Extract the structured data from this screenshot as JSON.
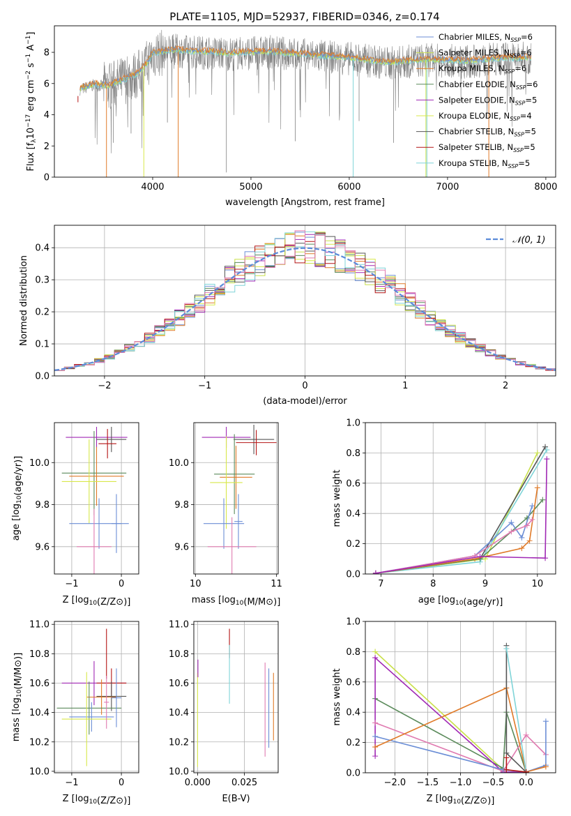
{
  "figure": {
    "title": "PLATE=1105, MJD=52937, FIBERID=0346, z=0.174"
  },
  "model_colors": {
    "Chabrier MILES": "#6b8ed6",
    "Salpeter MILES": "#c9e04a",
    "Kroupa MILES": "#e07a28",
    "Chabrier ELODIE": "#5a8a5a",
    "Salpeter ELODIE": "#a028b4",
    "Kroupa ELODIE": "#d8e84a",
    "Chabrier STELIB": "#555555",
    "Salpeter STELIB": "#b41414",
    "Kroupa STELIB": "#7fd4d8",
    "Pink": "#e07ab0",
    "Observed spectrum": "#808080",
    "Normal curve": "#5b8bd9"
  },
  "chart_data": [
    {
      "type": "line",
      "panel": "spectrum",
      "xlabel": "wavelength [Angstrom, rest frame]",
      "ylabel": "Flux [f_λ 10^-17 erg cm^-2 s^-1 A^-1]",
      "xlim": [
        3000,
        8100
      ],
      "ylim": [
        0,
        9.7
      ],
      "xticks": [
        4000,
        5000,
        6000,
        7000,
        8000
      ],
      "yticks": [
        0,
        2,
        4,
        6,
        8
      ],
      "grid": false,
      "legend_position": "right",
      "legend": [
        {
          "name": "Chabrier MILES, N_SSP=6",
          "label": "Chabrier MILES, N",
          "sub": "SSP",
          "tail": "=6"
        },
        {
          "name": "Salpeter MILES, N_SSP=6",
          "label": "Salpeter MILES, N",
          "sub": "SSP",
          "tail": "=6"
        },
        {
          "name": "Kroupa MILES, N_SSP=6",
          "label": "Kroupa MILES, N",
          "sub": "SSP",
          "tail": "=6"
        },
        {
          "name": "Chabrier ELODIE, N_SSP=6",
          "label": "Chabrier ELODIE, N",
          "sub": "SSP",
          "tail": "=6"
        },
        {
          "name": "Salpeter ELODIE, N_SSP=5",
          "label": "Salpeter ELODIE, N",
          "sub": "SSP",
          "tail": "=5"
        },
        {
          "name": "Kroupa ELODIE, N_SSP=4",
          "label": "Kroupa ELODIE, N",
          "sub": "SSP",
          "tail": "=4"
        },
        {
          "name": "Chabrier STELIB, N_SSP=5",
          "label": "Chabrier STELIB, N",
          "sub": "SSP",
          "tail": "=5"
        },
        {
          "name": "Salpeter STELIB, N_SSP=5",
          "label": "Salpeter STELIB, N",
          "sub": "SSP",
          "tail": "=5"
        },
        {
          "name": "Kroupa STELIB, N_SSP=5",
          "label": "Kroupa STELIB, N",
          "sub": "SSP",
          "tail": "=5"
        }
      ],
      "continuum": {
        "x": [
          3250,
          3400,
          3550,
          3700,
          3850,
          3950,
          4000,
          4200,
          4500,
          4800,
          5200,
          5600,
          6000,
          6400,
          6800,
          7200,
          7600,
          7850
        ],
        "y": [
          5.6,
          5.9,
          5.8,
          6.2,
          6.6,
          7.3,
          7.9,
          8.1,
          8.0,
          7.9,
          8.0,
          7.8,
          7.6,
          7.3,
          7.5,
          7.4,
          7.6,
          7.6
        ]
      },
      "model_spikes": [
        {
          "x": 3530,
          "color": "Kroupa MILES"
        },
        {
          "x": 3910,
          "color": "Kroupa ELODIE"
        },
        {
          "x": 4260,
          "color": "Kroupa MILES"
        },
        {
          "x": 6040,
          "color": "Kroupa STELIB"
        },
        {
          "x": 6780,
          "color": "Salpeter MILES"
        },
        {
          "x": 6790,
          "color": "Kroupa STELIB"
        },
        {
          "x": 7420,
          "color": "Kroupa MILES"
        }
      ],
      "data_dips": [
        {
          "x": 3600,
          "y": 2.2
        },
        {
          "x": 3780,
          "y": 2.8
        },
        {
          "x": 4150,
          "y": 3.5
        },
        {
          "x": 4750,
          "y": 0.3
        },
        {
          "x": 5450,
          "y": 2.3
        },
        {
          "x": 6450,
          "y": 2.2
        },
        {
          "x": 6100,
          "y": 3.6
        }
      ]
    },
    {
      "type": "bar",
      "panel": "residual-histogram",
      "xlabel": "(data-model)/error",
      "ylabel": "Normed distribution",
      "xlim": [
        -2.5,
        2.5
      ],
      "ylim": [
        0,
        0.47
      ],
      "xticks": [
        -2,
        -1,
        0,
        1,
        2
      ],
      "yticks": [
        0.0,
        0.1,
        0.2,
        0.3,
        0.4
      ],
      "grid": true,
      "legend_position": "top-right",
      "curve_legend_label": "𝒩(0, 1)",
      "bin_edges_range": [
        -2.5,
        2.5
      ],
      "n_bins": 50,
      "series_colors": [
        "Chabrier MILES",
        "Salpeter MILES",
        "Kroupa MILES",
        "Chabrier ELODIE",
        "Salpeter ELODIE",
        "Kroupa ELODIE",
        "Chabrier STELIB",
        "Salpeter STELIB",
        "Kroupa STELIB",
        "Pink"
      ],
      "curve": "standard normal density"
    },
    {
      "type": "scatter",
      "panel": "age-vs-Z",
      "xlabel": "Z [log10(Z/Z⊙)]",
      "ylabel": "age  [log10(age/yr)]",
      "xlim": [
        -1.35,
        0.35
      ],
      "ylim": [
        9.47,
        10.19
      ],
      "xticks": [
        -1,
        0
      ],
      "yticks": [
        9.6,
        9.8,
        10.0
      ],
      "grid": true,
      "points": [
        {
          "x": -0.5,
          "y": 10.12,
          "xerr": 0.62,
          "yerr": 0.05,
          "color": "Salpeter ELODIE"
        },
        {
          "x": -0.2,
          "y": 10.11,
          "xerr": 0.3,
          "yerr": 0.06,
          "color": "Chabrier STELIB"
        },
        {
          "x": -0.28,
          "y": 10.09,
          "xerr": 0.18,
          "yerr": 0.07,
          "color": "Salpeter STELIB"
        },
        {
          "x": -0.55,
          "y": 9.95,
          "xerr": 0.65,
          "yerr": 0.2,
          "color": "Chabrier ELODIE"
        },
        {
          "x": -0.5,
          "y": 9.935,
          "xerr": 0.55,
          "yerr": 0.14,
          "color": "Kroupa MILES"
        },
        {
          "x": -0.65,
          "y": 9.91,
          "xerr": 0.55,
          "yerr": 0.2,
          "color": "Kroupa ELODIE"
        },
        {
          "x": -0.45,
          "y": 9.71,
          "xerr": 0.6,
          "yerr": 0.12,
          "color": "Chabrier MILES"
        },
        {
          "x": -0.1,
          "y": 9.71,
          "xerr": 0.1,
          "yerr": 0.14,
          "color": "Chabrier MILES"
        },
        {
          "x": -0.55,
          "y": 9.6,
          "xerr": 0.35,
          "yerr": 0.18,
          "color": "Pink"
        }
      ]
    },
    {
      "type": "scatter",
      "panel": "age-vs-mass",
      "xlabel": "mass [log10(M/M⊙)]",
      "ylabel": "",
      "xlim": [
        9.98,
        11.02
      ],
      "ylim": [
        9.47,
        10.19
      ],
      "xticks": [
        10,
        11
      ],
      "yticks": [
        9.6,
        9.8,
        10.0
      ],
      "grid": true,
      "points": [
        {
          "x": 10.38,
          "y": 10.12,
          "xerr": 0.3,
          "yerr": 0.05,
          "color": "Salpeter ELODIE"
        },
        {
          "x": 10.72,
          "y": 10.11,
          "xerr": 0.25,
          "yerr": 0.07,
          "color": "Chabrier STELIB"
        },
        {
          "x": 10.75,
          "y": 10.095,
          "xerr": 0.25,
          "yerr": 0.06,
          "color": "Salpeter STELIB"
        },
        {
          "x": 10.48,
          "y": 9.945,
          "xerr": 0.25,
          "yerr": 0.19,
          "color": "Chabrier ELODIE"
        },
        {
          "x": 10.5,
          "y": 9.93,
          "xerr": 0.2,
          "yerr": 0.15,
          "color": "Kroupa MILES"
        },
        {
          "x": 10.38,
          "y": 9.905,
          "xerr": 0.2,
          "yerr": 0.22,
          "color": "Kroupa ELODIE"
        },
        {
          "x": 10.35,
          "y": 9.71,
          "xerr": 0.25,
          "yerr": 0.12,
          "color": "Chabrier MILES"
        },
        {
          "x": 10.53,
          "y": 9.72,
          "xerr": 0.05,
          "yerr": 0.13,
          "color": "Chabrier MILES"
        },
        {
          "x": 10.45,
          "y": 9.6,
          "xerr": 0.3,
          "yerr": 0.14,
          "color": "Pink"
        }
      ]
    },
    {
      "type": "line",
      "panel": "massweight-vs-age",
      "xlabel": "age  [log10(age/yr)]",
      "ylabel": "mass weight",
      "xlim": [
        6.7,
        10.35
      ],
      "ylim": [
        0,
        1.0
      ],
      "xticks": [
        7,
        8,
        9,
        10
      ],
      "yticks": [
        0.0,
        0.2,
        0.4,
        0.6,
        0.8,
        1.0
      ],
      "grid": true,
      "series": [
        {
          "color": "Salpeter MILES",
          "x": [
            6.9,
            9.0,
            10.0
          ],
          "y": [
            0.005,
            0.1,
            0.8
          ]
        },
        {
          "color": "Chabrier STELIB",
          "x": [
            6.9,
            8.9,
            10.15
          ],
          "y": [
            0.005,
            0.1,
            0.84
          ]
        },
        {
          "color": "Kroupa STELIB",
          "x": [
            6.9,
            8.9,
            10.18
          ],
          "y": [
            0.005,
            0.08,
            0.82
          ]
        },
        {
          "color": "Chabrier ELODIE",
          "x": [
            6.9,
            8.9,
            9.8,
            10.1
          ],
          "y": [
            0.005,
            0.1,
            0.37,
            0.49
          ]
        },
        {
          "color": "Chabrier MILES",
          "x": [
            6.9,
            8.8,
            9.5,
            9.7,
            9.9
          ],
          "y": [
            0.005,
            0.12,
            0.34,
            0.24,
            0.45
          ]
        },
        {
          "color": "Kroupa MILES",
          "x": [
            6.9,
            8.8,
            9.7,
            9.85,
            10.0
          ],
          "y": [
            0.005,
            0.1,
            0.17,
            0.22,
            0.57
          ]
        },
        {
          "color": "Pink",
          "x": [
            6.9,
            8.8,
            9.5,
            9.8,
            9.9
          ],
          "y": [
            0.005,
            0.12,
            0.28,
            0.32,
            0.36
          ]
        },
        {
          "color": "Salpeter ELODIE",
          "x": [
            6.9,
            8.9,
            10.15,
            10.18
          ],
          "y": [
            0.005,
            0.115,
            0.105,
            0.76
          ]
        }
      ]
    },
    {
      "type": "scatter",
      "panel": "mass-vs-Z",
      "xlabel": "Z [log10(Z/Z⊙)]",
      "ylabel": "mass [log10(M/M⊙)]",
      "xlim": [
        -1.35,
        0.35
      ],
      "ylim": [
        9.99,
        11.02
      ],
      "xticks": [
        -1,
        0
      ],
      "yticks": [
        10.0,
        10.2,
        10.4,
        10.6,
        10.8,
        11.0
      ],
      "grid": true,
      "points": [
        {
          "x": -0.3,
          "y": 10.8,
          "xerr": 0.0,
          "yerr": 0.17,
          "color": "Salpeter STELIB"
        },
        {
          "x": -0.55,
          "y": 10.6,
          "xerr": 0.65,
          "yerr": 0.15,
          "color": "Salpeter ELODIE"
        },
        {
          "x": -0.2,
          "y": 10.6,
          "xerr": 0.3,
          "yerr": 0.1,
          "color": "Salpeter STELIB"
        },
        {
          "x": -0.2,
          "y": 10.51,
          "xerr": 0.3,
          "yerr": 0.1,
          "color": "Chabrier STELIB"
        },
        {
          "x": -0.4,
          "y": 10.505,
          "xerr": 0.3,
          "yerr": 0.12,
          "color": "Kroupa MILES"
        },
        {
          "x": -0.65,
          "y": 10.43,
          "xerr": 0.65,
          "yerr": 0.18,
          "color": "Chabrier ELODIE"
        },
        {
          "x": -0.6,
          "y": 10.37,
          "xerr": 0.45,
          "yerr": 0.1,
          "color": "Chabrier MILES"
        },
        {
          "x": -0.1,
          "y": 10.5,
          "xerr": 0.1,
          "yerr": 0.2,
          "color": "Chabrier MILES"
        },
        {
          "x": -0.7,
          "y": 10.355,
          "xerr": 0.5,
          "yerr": 0.32,
          "color": "Kroupa ELODIE"
        },
        {
          "x": -0.3,
          "y": 10.47,
          "xerr": 0.05,
          "yerr": 0.18,
          "color": "Pink"
        }
      ]
    },
    {
      "type": "scatter",
      "panel": "mass-vs-EBV",
      "xlabel": "E(B-V)",
      "ylabel": "",
      "xlim": [
        -0.002,
        0.043
      ],
      "ylim": [
        9.99,
        11.02
      ],
      "xticks": [
        0.0,
        0.025
      ],
      "xtick_labels": [
        "0.000",
        "0.025"
      ],
      "yticks": [
        10.0,
        10.2,
        10.4,
        10.6,
        10.8,
        11.0
      ],
      "grid": true,
      "points": [
        {
          "x": 0.0,
          "y": 10.35,
          "yerr": 0.32,
          "color": "Kroupa ELODIE"
        },
        {
          "x": 0.0002,
          "y": 10.7,
          "yerr": 0.06,
          "color": "Salpeter ELODIE"
        },
        {
          "x": 0.017,
          "y": 10.87,
          "yerr": 0.1,
          "color": "Salpeter STELIB"
        },
        {
          "x": 0.017,
          "y": 10.66,
          "yerr": 0.2,
          "color": "Kroupa STELIB"
        },
        {
          "x": 0.036,
          "y": 10.42,
          "yerr": 0.32,
          "color": "Pink"
        },
        {
          "x": 0.038,
          "y": 10.43,
          "yerr": 0.27,
          "color": "Chabrier MILES"
        },
        {
          "x": 0.0405,
          "y": 10.44,
          "yerr": 0.23,
          "color": "Kroupa MILES"
        }
      ]
    },
    {
      "type": "line",
      "panel": "massweight-vs-Z",
      "xlabel": "Z [log10(Z/Z⊙)]",
      "ylabel": "mass weight",
      "xlim": [
        -2.45,
        0.45
      ],
      "ylim": [
        0,
        1.0
      ],
      "xticks": [
        -2.0,
        -1.5,
        -1.0,
        -0.5,
        0.0
      ],
      "yticks": [
        0.0,
        0.2,
        0.4,
        0.6,
        0.8,
        1.0
      ],
      "grid": true,
      "series": [
        {
          "color": "Salpeter MILES",
          "x": [
            -2.3,
            -0.35,
            0.0
          ],
          "y": [
            0.8,
            0.02,
            0.005
          ]
        },
        {
          "color": "Chabrier ELODIE",
          "x": [
            -2.3,
            -0.35,
            -0.3,
            0.0
          ],
          "y": [
            0.49,
            0.03,
            0.4,
            0.005
          ]
        },
        {
          "color": "Salpeter ELODIE",
          "x": [
            -2.3,
            -2.3,
            -0.35,
            0.0
          ],
          "y": [
            0.11,
            0.76,
            0.005,
            0.005
          ]
        },
        {
          "color": "Pink",
          "x": [
            -2.3,
            -0.35,
            0.0,
            0.3
          ],
          "y": [
            0.33,
            0.01,
            0.25,
            0.12
          ]
        },
        {
          "color": "Chabrier MILES",
          "x": [
            -2.3,
            -0.35,
            0.0,
            0.3,
            0.3
          ],
          "y": [
            0.24,
            0.02,
            0.005,
            0.05,
            0.34
          ]
        },
        {
          "color": "Kroupa MILES",
          "x": [
            -2.3,
            -0.3,
            0.0,
            0.3
          ],
          "y": [
            0.17,
            0.56,
            0.005,
            0.04
          ]
        },
        {
          "color": "Chabrier STELIB",
          "x": [
            -0.3,
            -0.3,
            0.0
          ],
          "y": [
            0.84,
            0.13,
            0.005
          ]
        },
        {
          "color": "Kroupa STELIB",
          "x": [
            -0.3,
            0.0
          ],
          "y": [
            0.82,
            0.005
          ]
        },
        {
          "color": "Salpeter STELIB",
          "x": [
            -0.3,
            -0.3,
            0.0
          ],
          "y": [
            0.1,
            0.02,
            0.005
          ]
        }
      ]
    }
  ]
}
